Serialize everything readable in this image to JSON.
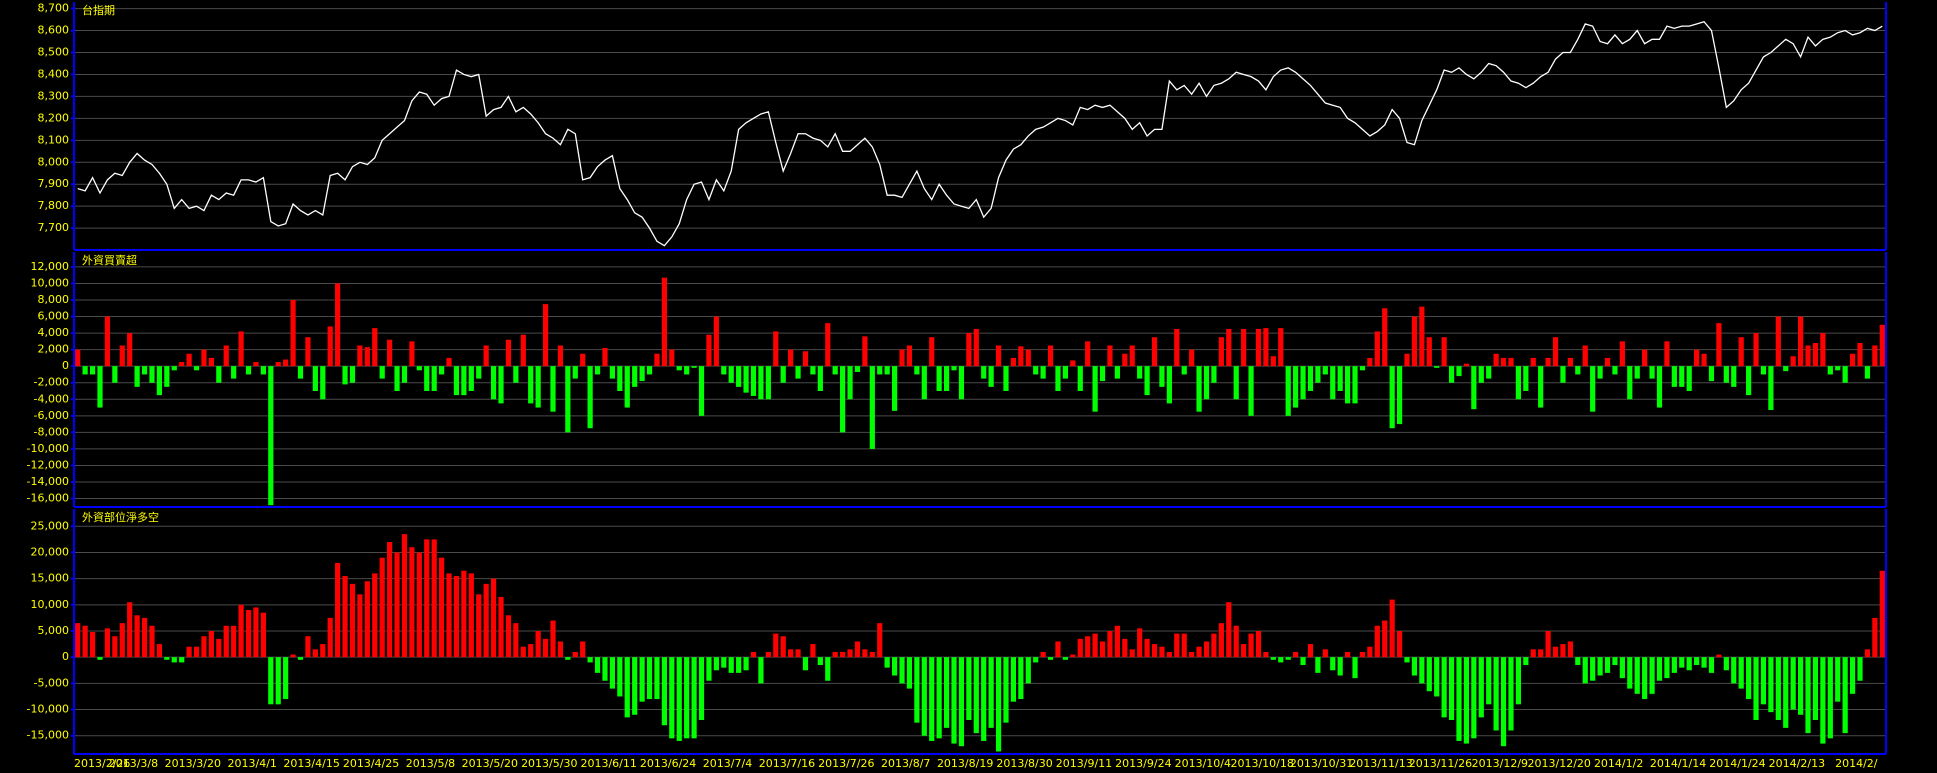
{
  "chart_data": [
    {
      "type": "line",
      "title": "台指期",
      "color": "#ffffff",
      "grid": true,
      "ylim": [
        7605,
        8730
      ],
      "yticks": [
        {
          "value": 7700,
          "label": "7,700"
        },
        {
          "value": 7800,
          "label": "7,800"
        },
        {
          "value": 7900,
          "label": "7,900"
        },
        {
          "value": 8000,
          "label": "8,000"
        },
        {
          "value": 8100,
          "label": "8,100"
        },
        {
          "value": 8200,
          "label": "8,200"
        },
        {
          "value": 8300,
          "label": "8,300"
        },
        {
          "value": 8400,
          "label": "8,400"
        },
        {
          "value": 8500,
          "label": "8,500"
        },
        {
          "value": 8600,
          "label": "8,600"
        },
        {
          "value": 8700,
          "label": "8,700"
        }
      ],
      "values": [
        7880,
        7870,
        7930,
        7860,
        7920,
        7950,
        7940,
        8000,
        8040,
        8010,
        7990,
        7950,
        7900,
        7790,
        7830,
        7790,
        7800,
        7780,
        7850,
        7830,
        7860,
        7850,
        7920,
        7920,
        7910,
        7930,
        7730,
        7710,
        7720,
        7810,
        7780,
        7760,
        7780,
        7760,
        7940,
        7950,
        7920,
        7980,
        8000,
        7990,
        8020,
        8100,
        8130,
        8160,
        8190,
        8280,
        8320,
        8310,
        8260,
        8290,
        8300,
        8420,
        8400,
        8390,
        8400,
        8210,
        8240,
        8250,
        8300,
        8230,
        8250,
        8220,
        8180,
        8130,
        8110,
        8080,
        8150,
        8130,
        7920,
        7930,
        7980,
        8010,
        8030,
        7880,
        7830,
        7770,
        7750,
        7700,
        7640,
        7620,
        7660,
        7720,
        7830,
        7900,
        7910,
        7830,
        7920,
        7870,
        7960,
        8150,
        8180,
        8200,
        8220,
        8230,
        8090,
        7960,
        8040,
        8130,
        8130,
        8110,
        8100,
        8070,
        8130,
        8050,
        8050,
        8080,
        8110,
        8070,
        7990,
        7850,
        7850,
        7840,
        7900,
        7960,
        7880,
        7830,
        7900,
        7850,
        7810,
        7800,
        7790,
        7830,
        7750,
        7790,
        7930,
        8010,
        8060,
        8080,
        8120,
        8150,
        8160,
        8180,
        8200,
        8190,
        8170,
        8250,
        8240,
        8260,
        8250,
        8260,
        8230,
        8200,
        8150,
        8180,
        8120,
        8150,
        8150,
        8370,
        8330,
        8350,
        8310,
        8360,
        8300,
        8350,
        8360,
        8380,
        8410,
        8400,
        8390,
        8370,
        8330,
        8390,
        8420,
        8430,
        8410,
        8380,
        8350,
        8310,
        8270,
        8260,
        8250,
        8200,
        8180,
        8150,
        8120,
        8140,
        8170,
        8240,
        8200,
        8090,
        8080,
        8190,
        8260,
        8330,
        8420,
        8410,
        8430,
        8400,
        8380,
        8410,
        8450,
        8440,
        8410,
        8370,
        8360,
        8340,
        8360,
        8390,
        8410,
        8470,
        8500,
        8500,
        8560,
        8630,
        8620,
        8550,
        8540,
        8580,
        8540,
        8560,
        8600,
        8540,
        8560,
        8560,
        8620,
        8610,
        8620,
        8620,
        8630,
        8640,
        8600,
        8430,
        8250,
        8280,
        8330,
        8360,
        8420,
        8480,
        8500,
        8530,
        8560,
        8540,
        8480,
        8570,
        8530,
        8560,
        8570,
        8590,
        8600,
        8580,
        8590,
        8610,
        8600,
        8620
      ]
    },
    {
      "type": "bar",
      "title": "外資買賣超",
      "color": "#ff0000",
      "negative_color": "#00ff00",
      "grid": true,
      "ylim": [
        -16900,
        13800
      ],
      "yticks": [
        {
          "value": 12000,
          "label": "12,000"
        },
        {
          "value": 10000,
          "label": "10,000"
        },
        {
          "value": 8000,
          "label": "8,000"
        },
        {
          "value": 6000,
          "label": "6,000"
        },
        {
          "value": 4000,
          "label": "4,000"
        },
        {
          "value": 2000,
          "label": "2,000"
        },
        0,
        {
          "value": -2000,
          "label": "-2,000"
        },
        {
          "value": -4000,
          "label": "-4,000"
        },
        {
          "value": -6000,
          "label": "-6,000"
        },
        {
          "value": -8000,
          "label": "-8,000"
        },
        {
          "value": -10000,
          "label": "-10,000"
        },
        {
          "value": -12000,
          "label": "-12,000"
        },
        {
          "value": -14000,
          "label": "-14,000"
        },
        {
          "value": -16000,
          "label": "-16,000"
        }
      ],
      "values": [
        2000,
        -1000,
        -1000,
        -5000,
        6000,
        -2000,
        2500,
        4000,
        -2500,
        -1000,
        -2000,
        -3500,
        -2500,
        -500,
        500,
        1500,
        -500,
        2000,
        1000,
        -2000,
        2500,
        -1500,
        4200,
        -1000,
        500,
        -1000,
        -16800,
        500,
        800,
        8000,
        -1500,
        3500,
        -3000,
        -4000,
        4800,
        10000,
        -2200,
        -2000,
        2500,
        2300,
        4600,
        -1500,
        3200,
        -3000,
        -2000,
        3000,
        -500,
        -3000,
        -3000,
        -1000,
        1000,
        -3500,
        -3500,
        -3000,
        -1500,
        2500,
        -4000,
        -4500,
        3200,
        -2000,
        3800,
        -4500,
        -5000,
        7500,
        -5500,
        2500,
        -8000,
        -1500,
        1500,
        -7500,
        -1000,
        2200,
        -1500,
        -3000,
        -5000,
        -2500,
        -1800,
        -1000,
        1500,
        10700,
        2000,
        -500,
        -1000,
        -200,
        -6000,
        3800,
        6000,
        -1000,
        -2000,
        -2500,
        -3200,
        -3600,
        -4000,
        -4000,
        4200,
        -2000,
        2000,
        -1500,
        1800,
        -1000,
        -3000,
        5200,
        -1000,
        -8000,
        -4000,
        -700,
        3600,
        -10000,
        -1000,
        -1000,
        -5400,
        2000,
        2500,
        -1000,
        -4000,
        3500,
        -3000,
        -3000,
        -500,
        -4000,
        4000,
        4500,
        -1500,
        -2500,
        2500,
        -3000,
        1000,
        2400,
        2000,
        -1000,
        -1500,
        2500,
        -3000,
        -1500,
        700,
        -3000,
        3000,
        -5500,
        -1800,
        2500,
        -1500,
        1500,
        2500,
        -1500,
        -3500,
        3500,
        -2500,
        -4500,
        4500,
        -1000,
        2000,
        -5500,
        -4000,
        -2000,
        3500,
        4500,
        -4000,
        4500,
        -6000,
        4500,
        4600,
        1200,
        4600,
        -6000,
        -5000,
        -4000,
        -3000,
        -2000,
        -1000,
        -4000,
        -3000,
        -4500,
        -4500,
        -500,
        1000,
        4200,
        7000,
        -7500,
        -7000,
        1500,
        6000,
        7200,
        3500,
        -200,
        3500,
        -2000,
        -1200,
        300,
        -5200,
        -2000,
        -1500,
        1500,
        1000,
        1000,
        -4000,
        -3000,
        1000,
        -5000,
        1000,
        3500,
        -2000,
        1000,
        -1000,
        2500,
        -5500,
        -1500,
        1000,
        -1000,
        3000,
        -4000,
        -1500,
        2000,
        -1500,
        -5000,
        3000,
        -2500,
        -2500,
        -3000,
        2000,
        1500,
        -1800,
        5200,
        -2000,
        -2500,
        3500,
        -3500,
        4000,
        -1000,
        -5300,
        6000,
        -600,
        1200,
        6000,
        2500,
        2800,
        4000,
        -1000,
        -500,
        -2000,
        1500,
        2800,
        -1500,
        2500,
        5000
      ]
    },
    {
      "type": "bar",
      "title": "外資部位淨多空",
      "color": "#ff0000",
      "negative_color": "#00ff00",
      "grid": true,
      "ylim": [
        -18300,
        28300
      ],
      "yticks": [
        {
          "value": 25000,
          "label": "25,000"
        },
        {
          "value": 20000,
          "label": "20,000"
        },
        {
          "value": 15000,
          "label": "15,000"
        },
        {
          "value": 10000,
          "label": "10,000"
        },
        {
          "value": 5000,
          "label": "5,000"
        },
        0,
        {
          "value": -5000,
          "label": "-5,000"
        },
        {
          "value": -10000,
          "label": "-10,000"
        },
        {
          "value": -15000,
          "label": "-15,000"
        }
      ],
      "categories": [
        "2013/2/26",
        null,
        null,
        null,
        null,
        null,
        null,
        null,
        "2013/3/8",
        null,
        null,
        null,
        null,
        null,
        null,
        null,
        "2013/3/20",
        null,
        null,
        null,
        null,
        null,
        null,
        null,
        "2013/4/1",
        null,
        null,
        null,
        null,
        null,
        null,
        null,
        "2013/4/15",
        null,
        null,
        null,
        null,
        null,
        null,
        null,
        "2013/4/25",
        null,
        null,
        null,
        null,
        null,
        null,
        null,
        "2013/5/8",
        null,
        null,
        null,
        null,
        null,
        null,
        null,
        "2013/5/20",
        null,
        null,
        null,
        null,
        null,
        null,
        null,
        "2013/5/30",
        null,
        null,
        null,
        null,
        null,
        null,
        null,
        "2013/6/11",
        null,
        null,
        null,
        null,
        null,
        null,
        null,
        "2013/6/24",
        null,
        null,
        null,
        null,
        null,
        null,
        null,
        "2013/7/4",
        null,
        null,
        null,
        null,
        null,
        null,
        null,
        "2013/7/16",
        null,
        null,
        null,
        null,
        null,
        null,
        null,
        "2013/7/26",
        null,
        null,
        null,
        null,
        null,
        null,
        null,
        "2013/8/7",
        null,
        null,
        null,
        null,
        null,
        null,
        null,
        "2013/8/19",
        null,
        null,
        null,
        null,
        null,
        null,
        null,
        "2013/8/30",
        null,
        null,
        null,
        null,
        null,
        null,
        null,
        "2013/9/11",
        null,
        null,
        null,
        null,
        null,
        null,
        null,
        "2013/9/24",
        null,
        null,
        null,
        null,
        null,
        null,
        null,
        "2013/10/4",
        null,
        null,
        null,
        null,
        null,
        null,
        null,
        "2013/10/18",
        null,
        null,
        null,
        null,
        null,
        null,
        null,
        "2013/10/31",
        null,
        null,
        null,
        null,
        null,
        null,
        null,
        "2013/11/13",
        null,
        null,
        null,
        null,
        null,
        null,
        null,
        "2013/11/26",
        null,
        null,
        null,
        null,
        null,
        null,
        null,
        "2013/12/9",
        null,
        null,
        null,
        null,
        null,
        null,
        null,
        "2013/12/20",
        null,
        null,
        null,
        null,
        null,
        null,
        null,
        "2014/1/2",
        null,
        null,
        null,
        null,
        null,
        null,
        null,
        "2014/1/14",
        null,
        null,
        null,
        null,
        null,
        null,
        null,
        "2014/1/24",
        null,
        null,
        null,
        null,
        null,
        null,
        null,
        "2014/2/13",
        null,
        null,
        null,
        null,
        null,
        null,
        null,
        "2014/2/",
        null,
        null,
        null
      ],
      "values": [
        6500,
        6000,
        4800,
        -500,
        5500,
        4000,
        6500,
        10500,
        8000,
        7500,
        6000,
        2500,
        -500,
        -1000,
        -1000,
        2000,
        2000,
        4000,
        5000,
        3500,
        6000,
        6000,
        10000,
        9000,
        9500,
        8500,
        -9000,
        -9000,
        -8000,
        500,
        -500,
        4000,
        1500,
        2500,
        7500,
        18000,
        15500,
        14000,
        12000,
        14500,
        16000,
        19000,
        22000,
        20000,
        23500,
        21000,
        20000,
        22500,
        22500,
        19000,
        16000,
        15500,
        16500,
        16000,
        12000,
        14000,
        15000,
        11500,
        8000,
        6500,
        2000,
        2500,
        5000,
        3500,
        7000,
        3000,
        -500,
        1000,
        3000,
        -1000,
        -3000,
        -4500,
        -6000,
        -7500,
        -11500,
        -11000,
        -8500,
        -8000,
        -8000,
        -13000,
        -15500,
        -16000,
        -15500,
        -15500,
        -12000,
        -4500,
        -2500,
        -2000,
        -3000,
        -3000,
        -2500,
        1000,
        -5000,
        1000,
        4500,
        4000,
        1500,
        1500,
        -2500,
        2500,
        -1500,
        -4500,
        1000,
        1000,
        1500,
        3000,
        1500,
        1000,
        6500,
        -2000,
        -3500,
        -5000,
        -6000,
        -12500,
        -15000,
        -16000,
        -15500,
        -13500,
        -16500,
        -17000,
        -12000,
        -14500,
        -16000,
        -13500,
        -18000,
        -12500,
        -8500,
        -8000,
        -5000,
        -1000,
        1000,
        -500,
        3000,
        -500,
        500,
        3500,
        4000,
        4500,
        3000,
        5000,
        6000,
        3500,
        1500,
        5500,
        3500,
        2500,
        2000,
        1000,
        4500,
        4500,
        1000,
        2000,
        3000,
        4500,
        6500,
        10500,
        6000,
        2500,
        4500,
        5000,
        1000,
        -500,
        -1000,
        -500,
        1000,
        -1500,
        2500,
        -3000,
        1500,
        -2500,
        -3500,
        1000,
        -4000,
        1000,
        2000,
        6000,
        7000,
        11000,
        5000,
        -1000,
        -3500,
        -5000,
        -6500,
        -7500,
        -11500,
        -12000,
        -16000,
        -16500,
        -15500,
        -11500,
        -9000,
        -14000,
        -17000,
        -14000,
        -9000,
        -1500,
        1500,
        1500,
        5000,
        2000,
        2500,
        3000,
        -1500,
        -5000,
        -4500,
        -3500,
        -3000,
        -1500,
        -4000,
        -6000,
        -7000,
        -8000,
        -7000,
        -4500,
        -4000,
        -3000,
        -2000,
        -2500,
        -1500,
        -2000,
        -3000,
        500,
        -2500,
        -5000,
        -6000,
        -8000,
        -12000,
        -9000,
        -10500,
        -12000,
        -13500,
        -10000,
        -11000,
        -14500,
        -12000,
        -16500,
        -15500,
        -8500,
        -14500,
        -7000,
        -4500,
        1500,
        7500,
        16500
      ]
    }
  ]
}
